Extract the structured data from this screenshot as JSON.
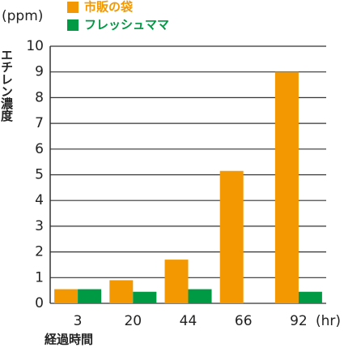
{
  "chart_data": {
    "type": "bar",
    "y_unit": "(ppm)",
    "y_label": "エチレン濃度",
    "x_unit": "(hr)",
    "x_label": "経過時間",
    "categories": [
      "3",
      "20",
      "44",
      "66",
      "92"
    ],
    "series": [
      {
        "name": "市販の袋",
        "color": "#f39800",
        "values": [
          0.55,
          0.9,
          1.7,
          5.15,
          9.0
        ]
      },
      {
        "name": "フレッシュママ",
        "color": "#009944",
        "values": [
          0.55,
          0.45,
          0.55,
          null,
          0.45
        ]
      }
    ],
    "ylim": [
      0,
      10
    ],
    "yticks": [
      0,
      1,
      2,
      3,
      4,
      5,
      6,
      7,
      8,
      9,
      10
    ],
    "grid": true
  }
}
